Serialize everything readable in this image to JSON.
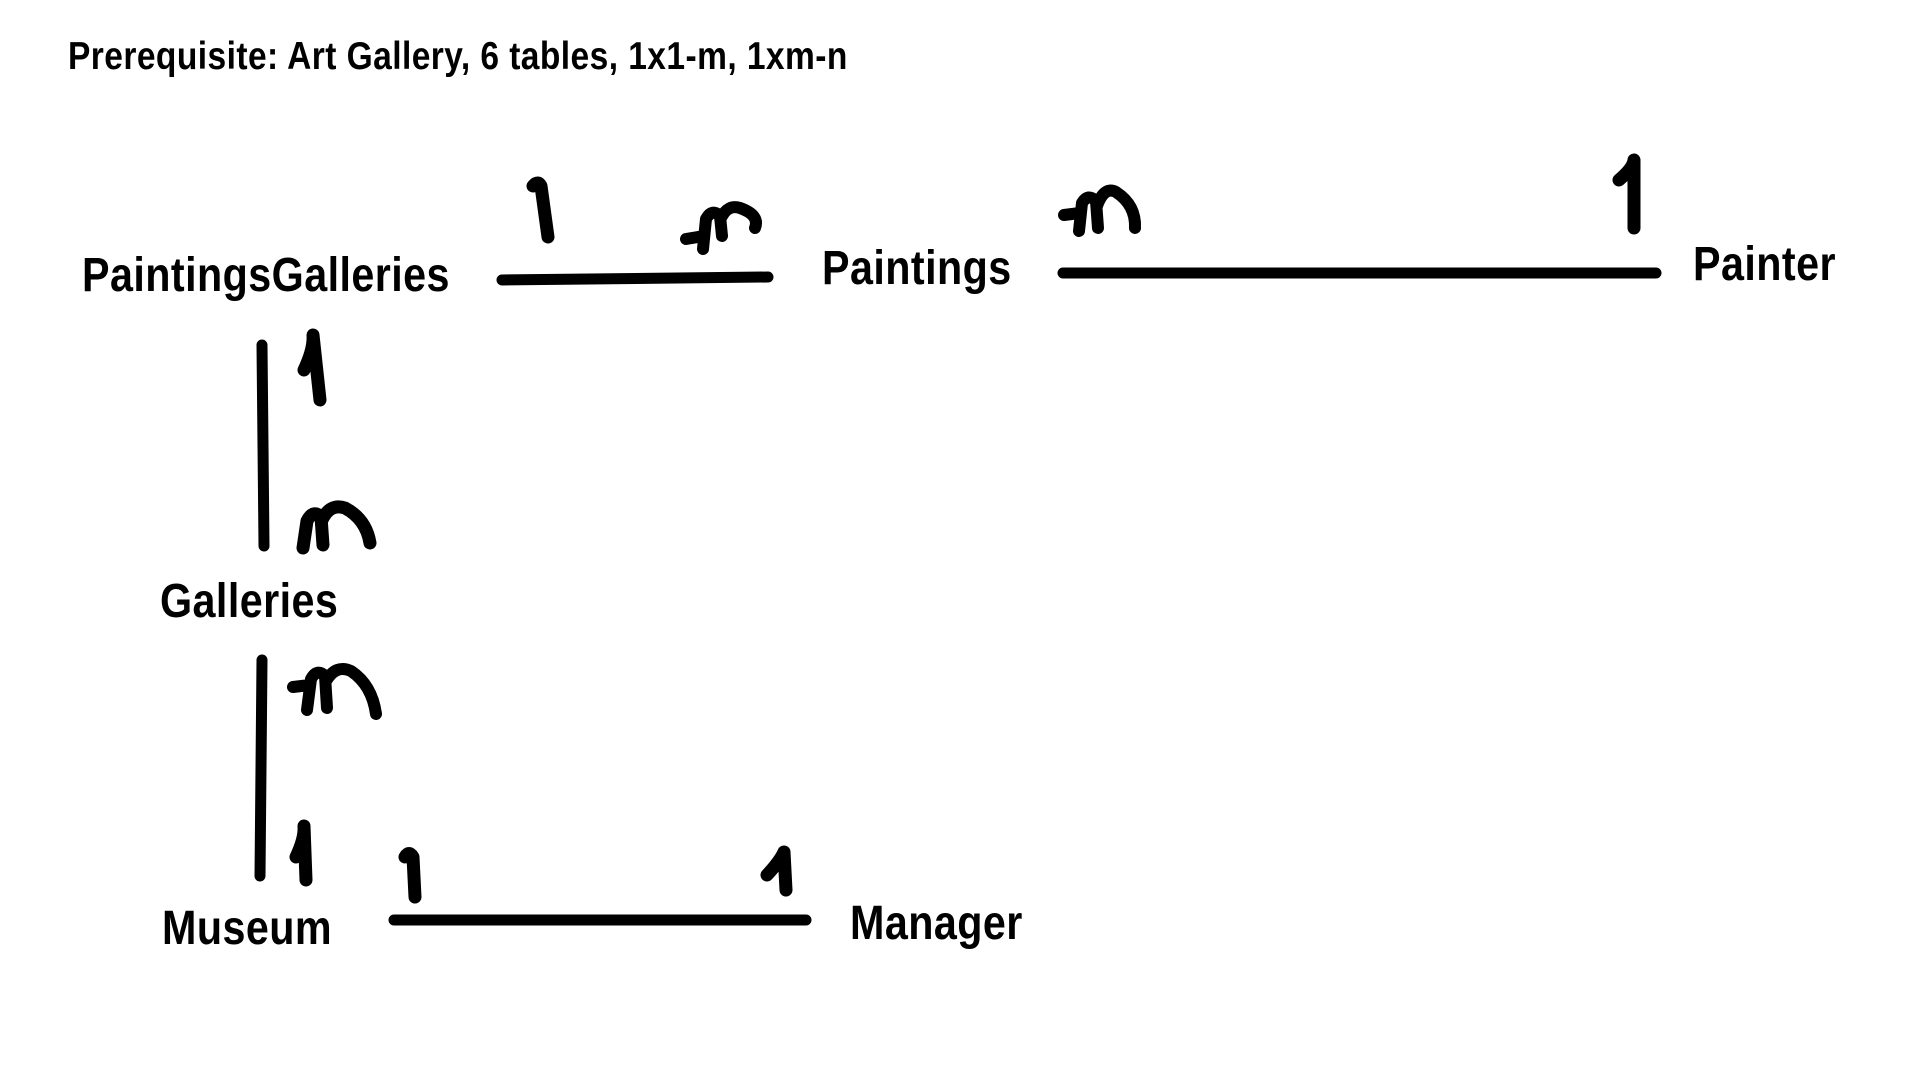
{
  "title": "Prerequisite: Art Gallery, 6 tables, 1x1-m, 1xm-n",
  "entities": {
    "paintings_galleries": "PaintingsGalleries",
    "paintings": "Paintings",
    "painter": "Painter",
    "galleries": "Galleries",
    "museum": "Museum",
    "manager": "Manager"
  },
  "relationships": [
    {
      "from": "PaintingsGalleries",
      "to": "Paintings",
      "from_cardinality": "1",
      "to_cardinality": "m"
    },
    {
      "from": "Paintings",
      "to": "Painter",
      "from_cardinality": "m",
      "to_cardinality": "1"
    },
    {
      "from": "PaintingsGalleries",
      "to": "Galleries",
      "from_cardinality": "1",
      "to_cardinality": "m"
    },
    {
      "from": "Galleries",
      "to": "Museum",
      "from_cardinality": "m",
      "to_cardinality": "1"
    },
    {
      "from": "Museum",
      "to": "Manager",
      "from_cardinality": "1",
      "to_cardinality": "1"
    }
  ],
  "colors": {
    "ink": "#000000",
    "background": "#ffffff"
  }
}
